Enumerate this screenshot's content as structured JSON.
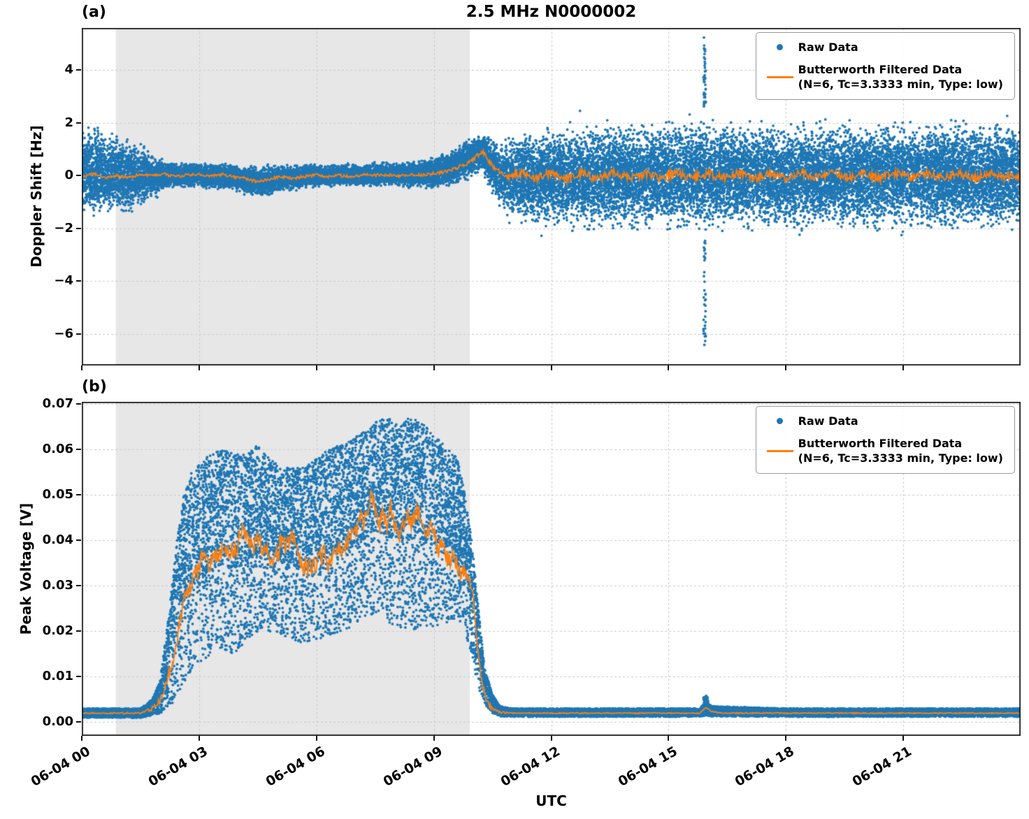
{
  "figure": {
    "xlabel": "UTC",
    "xlim": [
      0,
      24
    ],
    "xticks": [
      {
        "v": 0,
        "label": "06-04 00"
      },
      {
        "v": 3,
        "label": "06-04 03"
      },
      {
        "v": 6,
        "label": "06-04 06"
      },
      {
        "v": 9,
        "label": "06-04 09"
      },
      {
        "v": 12,
        "label": "06-04 12"
      },
      {
        "v": 15,
        "label": "06-04 15"
      },
      {
        "v": 18,
        "label": "06-04 18"
      },
      {
        "v": 21,
        "label": "06-04 21"
      }
    ]
  },
  "colors": {
    "raw": "#1f77b4",
    "filtered": "#ff7f0e",
    "shade": "#e7e7e7",
    "grid": "#c9c9c9",
    "spine": "#1a1a1a"
  },
  "legend": {
    "raw_label": "Raw Data",
    "filtered_label": "Butterworth Filtered Data",
    "filtered_sub": "(N=6, Tc=3.3333 min, Type: low)",
    "position": "upper right"
  },
  "chart_data": [
    {
      "id": "a",
      "panel_label": "(a)",
      "type": "scatter+line",
      "title": "2.5 MHz N0000002",
      "ylabel": "Doppler Shift [Hz]",
      "ylim": [
        -7.2,
        5.6
      ],
      "grid": true,
      "yticks": [
        {
          "v": 4,
          "label": "4"
        },
        {
          "v": 2,
          "label": "2"
        },
        {
          "v": 0,
          "label": "0"
        },
        {
          "v": -2,
          "label": "−2"
        },
        {
          "v": -4,
          "label": "−4"
        },
        {
          "v": -6,
          "label": "−6"
        }
      ],
      "shade_span": [
        0.87,
        9.92
      ],
      "n_points": 26000,
      "dot_distribution": "gauss",
      "raw_band": [
        [
          0,
          -1.9,
          2.3
        ],
        [
          0.4,
          -1.7,
          1.9
        ],
        [
          0.9,
          -1.6,
          1.7
        ],
        [
          1.4,
          -1.4,
          1.4
        ],
        [
          1.8,
          -0.9,
          0.9
        ],
        [
          2.2,
          -0.55,
          0.55
        ],
        [
          2.6,
          -0.5,
          0.5
        ],
        [
          3,
          -0.5,
          0.55
        ],
        [
          3.4,
          -0.6,
          0.6
        ],
        [
          3.8,
          -0.6,
          0.5
        ],
        [
          4.2,
          -0.75,
          0.45
        ],
        [
          4.6,
          -0.9,
          0.4
        ],
        [
          5,
          -0.7,
          0.45
        ],
        [
          5.4,
          -0.65,
          0.45
        ],
        [
          5.8,
          -0.5,
          0.5
        ],
        [
          6.2,
          -0.5,
          0.5
        ],
        [
          6.6,
          -0.45,
          0.5
        ],
        [
          7,
          -0.45,
          0.5
        ],
        [
          7.4,
          -0.45,
          0.5
        ],
        [
          7.8,
          -0.45,
          0.55
        ],
        [
          8.2,
          -0.5,
          0.6
        ],
        [
          8.6,
          -0.55,
          0.65
        ],
        [
          9,
          -0.6,
          0.8
        ],
        [
          9.4,
          -0.5,
          1.0
        ],
        [
          9.7,
          -0.35,
          1.3
        ],
        [
          10,
          -0.1,
          1.6
        ],
        [
          10.25,
          0.0,
          1.75
        ],
        [
          10.5,
          -0.8,
          1.5
        ],
        [
          10.75,
          -1.5,
          1.4
        ],
        [
          11,
          -1.9,
          1.7
        ],
        [
          11.5,
          -2.1,
          1.9
        ],
        [
          12,
          -2.1,
          2.0
        ],
        [
          13,
          -2.2,
          2.1
        ],
        [
          14,
          -2.2,
          2.2
        ],
        [
          15,
          -2.3,
          2.2
        ],
        [
          16,
          -2.3,
          2.3
        ],
        [
          17,
          -2.2,
          2.2
        ],
        [
          18,
          -2.3,
          2.2
        ],
        [
          19,
          -2.2,
          2.2
        ],
        [
          20,
          -2.2,
          2.3
        ],
        [
          21,
          -2.3,
          2.2
        ],
        [
          22,
          -2.3,
          2.3
        ],
        [
          23,
          -2.2,
          2.2
        ],
        [
          24,
          -2.3,
          2.3
        ]
      ],
      "spikes": [
        {
          "t": 15.92,
          "dt": 0.06,
          "min": 2.6,
          "max": 5.35,
          "count": 42
        },
        {
          "t": 15.92,
          "dt": 0.06,
          "min": -6.6,
          "max": -2.4,
          "count": 38
        }
      ],
      "filtered": [
        [
          0,
          -0.05
        ],
        [
          0.3,
          0.08
        ],
        [
          0.6,
          -0.1
        ],
        [
          0.9,
          0
        ],
        [
          1.2,
          -0.08
        ],
        [
          1.5,
          0.05
        ],
        [
          1.8,
          -0.02
        ],
        [
          2.1,
          0.06
        ],
        [
          2.4,
          -0.04
        ],
        [
          2.7,
          0.03
        ],
        [
          3,
          0.06
        ],
        [
          3.3,
          -0.02
        ],
        [
          3.6,
          0.04
        ],
        [
          3.9,
          -0.05
        ],
        [
          4.2,
          -0.12
        ],
        [
          4.5,
          -0.25
        ],
        [
          4.8,
          -0.12
        ],
        [
          5.1,
          -0.05
        ],
        [
          5.4,
          -0.1
        ],
        [
          5.7,
          -0.03
        ],
        [
          6,
          0.02
        ],
        [
          6.3,
          -0.05
        ],
        [
          6.6,
          0
        ],
        [
          6.9,
          -0.04
        ],
        [
          7.2,
          0.03
        ],
        [
          7.5,
          0
        ],
        [
          7.8,
          0.04
        ],
        [
          8.1,
          -0.02
        ],
        [
          8.4,
          0.05
        ],
        [
          8.7,
          0.02
        ],
        [
          9,
          0.08
        ],
        [
          9.3,
          0.15
        ],
        [
          9.6,
          0.3
        ],
        [
          9.9,
          0.5
        ],
        [
          10.1,
          0.75
        ],
        [
          10.25,
          0.92
        ],
        [
          10.4,
          0.55
        ],
        [
          10.55,
          0.3
        ],
        [
          10.7,
          0.12
        ],
        [
          10.9,
          -0.05
        ],
        [
          11.2,
          0.1
        ],
        [
          11.6,
          -0.12
        ],
        [
          12,
          0.1
        ],
        [
          12.4,
          -0.15
        ],
        [
          12.8,
          0.1
        ],
        [
          13.2,
          -0.1
        ],
        [
          13.6,
          0.12
        ],
        [
          14,
          -0.12
        ],
        [
          14.4,
          0.08
        ],
        [
          14.8,
          -0.1
        ],
        [
          15.2,
          0.1
        ],
        [
          15.6,
          -0.12
        ],
        [
          16,
          0.08
        ],
        [
          16.4,
          -0.08
        ],
        [
          16.8,
          0.1
        ],
        [
          17.2,
          -0.1
        ],
        [
          17.6,
          0.08
        ],
        [
          18,
          -0.12
        ],
        [
          18.4,
          0.1
        ],
        [
          18.8,
          -0.08
        ],
        [
          19.2,
          0.1
        ],
        [
          19.6,
          -0.1
        ],
        [
          20,
          0.08
        ],
        [
          20.4,
          -0.1
        ],
        [
          20.8,
          0.1
        ],
        [
          21.2,
          -0.08
        ],
        [
          21.6,
          0.1
        ],
        [
          22,
          -0.1
        ],
        [
          22.4,
          0.08
        ],
        [
          22.8,
          -0.1
        ],
        [
          23.2,
          0.08
        ],
        [
          23.6,
          -0.05
        ],
        [
          24,
          0.02
        ]
      ],
      "filtered_jitter": [
        [
          0,
          0.05
        ],
        [
          9,
          0.06
        ],
        [
          9.5,
          0.07
        ],
        [
          10.6,
          0.08
        ],
        [
          11,
          0.16
        ],
        [
          24,
          0.16
        ]
      ]
    },
    {
      "id": "b",
      "panel_label": "(b)",
      "type": "scatter+line",
      "title": "",
      "ylabel": "Peak Voltage [V]",
      "ylim": [
        -0.003,
        0.0705
      ],
      "grid": true,
      "yticks": [
        {
          "v": 0.07,
          "label": "0.07"
        },
        {
          "v": 0.06,
          "label": "0.06"
        },
        {
          "v": 0.05,
          "label": "0.05"
        },
        {
          "v": 0.04,
          "label": "0.04"
        },
        {
          "v": 0.03,
          "label": "0.03"
        },
        {
          "v": 0.02,
          "label": "0.02"
        },
        {
          "v": 0.01,
          "label": "0.01"
        },
        {
          "v": 0.0,
          "label": "0.00"
        }
      ],
      "shade_span": [
        0.87,
        9.92
      ],
      "n_points": 22000,
      "dot_distribution": "topheavy",
      "raw_band": [
        [
          0,
          0.001,
          0.003
        ],
        [
          1.5,
          0.001,
          0.003
        ],
        [
          1.8,
          0.0015,
          0.005
        ],
        [
          2,
          0.002,
          0.009
        ],
        [
          2.2,
          0.003,
          0.022
        ],
        [
          2.4,
          0.005,
          0.038
        ],
        [
          2.6,
          0.008,
          0.05
        ],
        [
          2.8,
          0.011,
          0.055
        ],
        [
          3,
          0.013,
          0.057
        ],
        [
          3.3,
          0.015,
          0.059
        ],
        [
          3.6,
          0.016,
          0.06
        ],
        [
          3.9,
          0.015,
          0.059
        ],
        [
          4.2,
          0.018,
          0.059
        ],
        [
          4.5,
          0.02,
          0.061
        ],
        [
          4.8,
          0.02,
          0.058
        ],
        [
          5.1,
          0.019,
          0.056
        ],
        [
          5.4,
          0.018,
          0.056
        ],
        [
          5.7,
          0.017,
          0.056
        ],
        [
          6,
          0.018,
          0.058
        ],
        [
          6.3,
          0.019,
          0.06
        ],
        [
          6.6,
          0.02,
          0.061
        ],
        [
          6.9,
          0.021,
          0.062
        ],
        [
          7.2,
          0.023,
          0.064
        ],
        [
          7.5,
          0.024,
          0.066
        ],
        [
          7.8,
          0.022,
          0.067
        ],
        [
          8.1,
          0.021,
          0.066
        ],
        [
          8.4,
          0.02,
          0.067
        ],
        [
          8.7,
          0.021,
          0.066
        ],
        [
          9,
          0.021,
          0.063
        ],
        [
          9.3,
          0.022,
          0.061
        ],
        [
          9.6,
          0.022,
          0.058
        ],
        [
          9.8,
          0.02,
          0.05
        ],
        [
          10,
          0.013,
          0.038
        ],
        [
          10.15,
          0.007,
          0.024
        ],
        [
          10.3,
          0.004,
          0.012
        ],
        [
          10.5,
          0.002,
          0.006
        ],
        [
          10.7,
          0.0013,
          0.0035
        ],
        [
          11,
          0.0012,
          0.003
        ],
        [
          13,
          0.0012,
          0.003
        ],
        [
          15.8,
          0.0012,
          0.003
        ],
        [
          15.95,
          0.0015,
          0.0045
        ],
        [
          16.1,
          0.0013,
          0.0035
        ],
        [
          18,
          0.0012,
          0.003
        ],
        [
          21,
          0.0012,
          0.003
        ],
        [
          24,
          0.0012,
          0.003
        ]
      ],
      "spikes": [
        {
          "t": 15.95,
          "dt": 0.12,
          "min": 0.0025,
          "max": 0.0058,
          "count": 60
        }
      ],
      "filtered": [
        [
          0,
          0.002
        ],
        [
          1.5,
          0.002
        ],
        [
          1.8,
          0.003
        ],
        [
          2,
          0.005
        ],
        [
          2.2,
          0.01
        ],
        [
          2.4,
          0.016
        ],
        [
          2.6,
          0.027
        ],
        [
          2.8,
          0.03
        ],
        [
          3,
          0.034
        ],
        [
          3.1,
          0.037
        ],
        [
          3.2,
          0.035
        ],
        [
          3.4,
          0.036
        ],
        [
          3.6,
          0.038
        ],
        [
          3.8,
          0.037
        ],
        [
          4,
          0.039
        ],
        [
          4.1,
          0.042
        ],
        [
          4.2,
          0.04
        ],
        [
          4.4,
          0.038
        ],
        [
          4.5,
          0.041
        ],
        [
          4.6,
          0.038
        ],
        [
          4.8,
          0.036
        ],
        [
          5,
          0.037
        ],
        [
          5.1,
          0.04
        ],
        [
          5.2,
          0.038
        ],
        [
          5.4,
          0.04
        ],
        [
          5.5,
          0.037
        ],
        [
          5.6,
          0.035
        ],
        [
          5.8,
          0.034
        ],
        [
          6,
          0.035
        ],
        [
          6.2,
          0.037
        ],
        [
          6.3,
          0.035
        ],
        [
          6.4,
          0.036
        ],
        [
          6.6,
          0.038
        ],
        [
          6.8,
          0.04
        ],
        [
          7,
          0.042
        ],
        [
          7.1,
          0.045
        ],
        [
          7.2,
          0.043
        ],
        [
          7.3,
          0.047
        ],
        [
          7.4,
          0.05
        ],
        [
          7.5,
          0.047
        ],
        [
          7.6,
          0.043
        ],
        [
          7.7,
          0.046
        ],
        [
          7.8,
          0.044
        ],
        [
          7.9,
          0.047
        ],
        [
          8,
          0.043
        ],
        [
          8.1,
          0.04
        ],
        [
          8.2,
          0.043
        ],
        [
          8.3,
          0.046
        ],
        [
          8.4,
          0.043
        ],
        [
          8.5,
          0.045
        ],
        [
          8.6,
          0.047
        ],
        [
          8.7,
          0.043
        ],
        [
          8.8,
          0.04
        ],
        [
          8.9,
          0.043
        ],
        [
          9,
          0.041
        ],
        [
          9.1,
          0.038
        ],
        [
          9.2,
          0.04
        ],
        [
          9.3,
          0.037
        ],
        [
          9.4,
          0.035
        ],
        [
          9.5,
          0.036
        ],
        [
          9.6,
          0.034
        ],
        [
          9.8,
          0.032
        ],
        [
          9.9,
          0.032
        ],
        [
          10,
          0.028
        ],
        [
          10.1,
          0.018
        ],
        [
          10.2,
          0.01
        ],
        [
          10.3,
          0.006
        ],
        [
          10.4,
          0.004
        ],
        [
          10.5,
          0.003
        ],
        [
          10.7,
          0.0022
        ],
        [
          11,
          0.002
        ],
        [
          15.8,
          0.002
        ],
        [
          15.95,
          0.0032
        ],
        [
          16.1,
          0.0024
        ],
        [
          16.3,
          0.002
        ],
        [
          20,
          0.002
        ],
        [
          24,
          0.002
        ]
      ],
      "filtered_jitter": [
        [
          0,
          0.00012
        ],
        [
          1.6,
          0.0002
        ],
        [
          2.4,
          0.0015
        ],
        [
          3,
          0.0022
        ],
        [
          9.6,
          0.0022
        ],
        [
          10,
          0.0012
        ],
        [
          10.6,
          0.0003
        ],
        [
          11,
          0.00012
        ],
        [
          24,
          0.00012
        ]
      ]
    }
  ]
}
